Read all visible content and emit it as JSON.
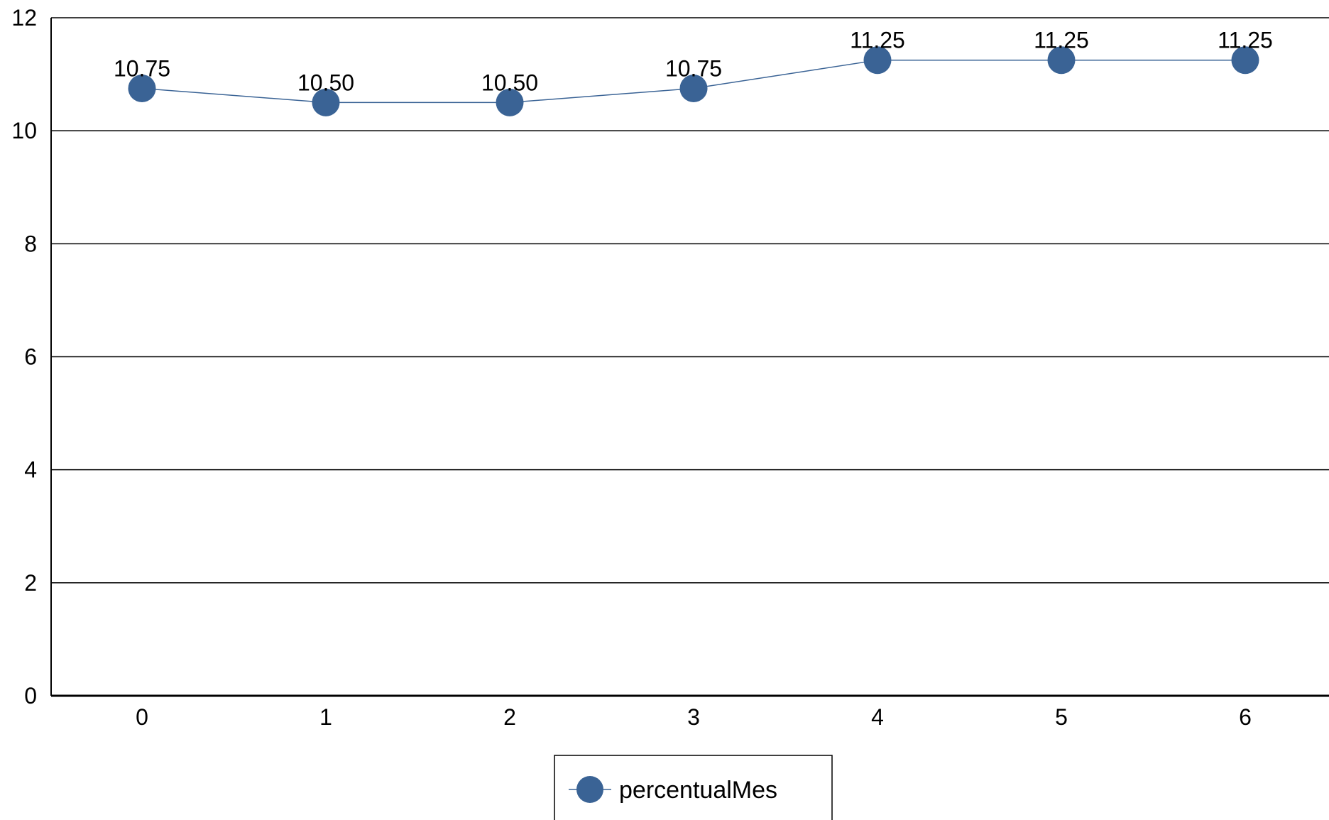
{
  "chart_data": {
    "type": "line",
    "title": "",
    "xlabel": "",
    "ylabel": "",
    "x": [
      0,
      1,
      2,
      3,
      4,
      5,
      6
    ],
    "series": [
      {
        "name": "percentualMes",
        "values": [
          10.75,
          10.5,
          10.5,
          10.75,
          11.25,
          11.25,
          11.25
        ],
        "labels": [
          "10.75",
          "10.50",
          "10.50",
          "10.75",
          "11.25",
          "11.25",
          "11.25"
        ],
        "color": "#3a6395"
      }
    ],
    "ylim": [
      0,
      12
    ],
    "yticks": [
      0,
      2,
      4,
      6,
      8,
      10,
      12
    ],
    "xticks": [
      "0",
      "1",
      "2",
      "3",
      "4",
      "5",
      "6"
    ],
    "grid": "horizontal",
    "legend": "bottom-center"
  }
}
